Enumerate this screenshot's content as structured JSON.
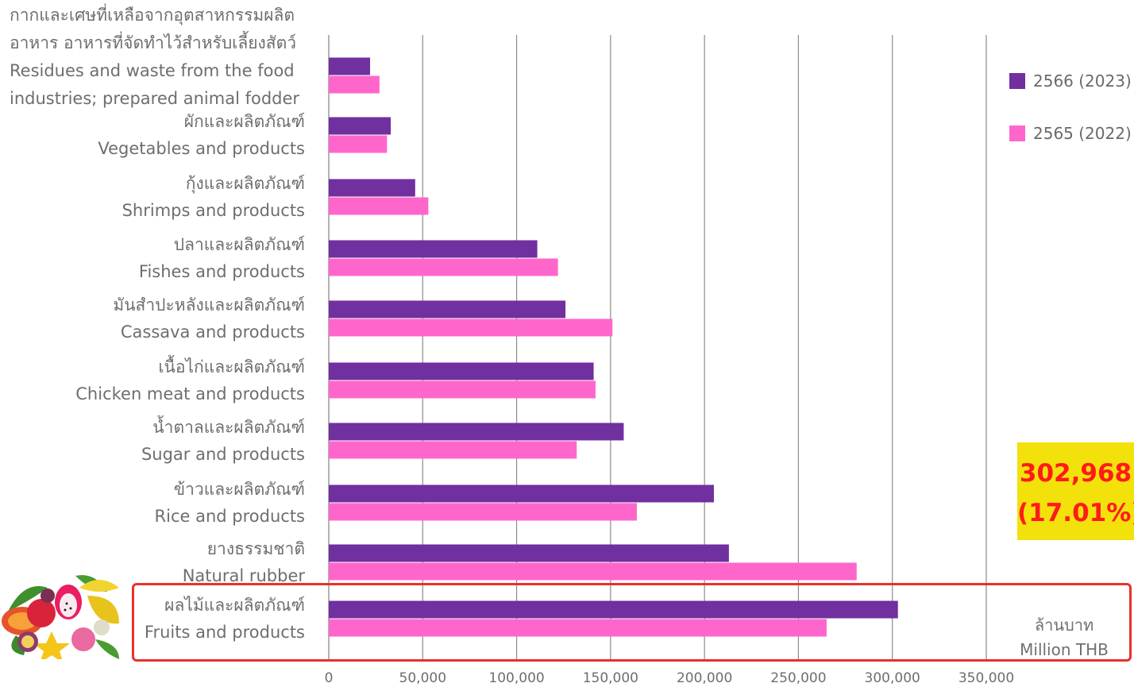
{
  "chart_data": {
    "type": "bar",
    "orientation": "horizontal",
    "title": "",
    "xlabel": "",
    "ylabel": "",
    "unit_label": [
      "ล้านบาท",
      "Million THB"
    ],
    "xlim": [
      0,
      350000
    ],
    "xticks": [
      "0",
      "50,000",
      "100,000",
      "150,000",
      "200,000",
      "250,000",
      "300,000",
      "350,000"
    ],
    "grid": true,
    "legend_placement": "right",
    "categories": [
      [
        "กากและเศษที่เหลือจากอุตสาหกรรมผลิต",
        "อาหาร อาหารที่จัดทำไว้สำหรับเลี้ยงสัตว์",
        "Residues and waste from the food",
        "industries; prepared animal fodder"
      ],
      [
        "ผักและผลิตภัณฑ์",
        "Vegetables and products"
      ],
      [
        "กุ้งและผลิตภัณฑ์",
        "Shrimps and products"
      ],
      [
        "ปลาและผลิตภัณฑ์",
        "Fishes and products"
      ],
      [
        "มันสำปะหลังและผลิตภัณฑ์",
        "Cassava and products"
      ],
      [
        "เนื้อไก่และผลิตภัณฑ์",
        "Chicken meat and products"
      ],
      [
        "น้ำตาลและผลิตภัณฑ์",
        "Sugar and products"
      ],
      [
        "ข้าวและผลิตภัณฑ์",
        "Rice and products"
      ],
      [
        "ยางธรรมชาติ",
        "Natural rubber"
      ],
      [
        "ผลไม้และผลิตภัณฑ์",
        "Fruits and products"
      ]
    ],
    "series": [
      {
        "name": "2566 (2023)",
        "color": "#7030a0",
        "values": [
          22000,
          33000,
          46000,
          111000,
          126000,
          141000,
          157000,
          205000,
          213000,
          302968
        ]
      },
      {
        "name": "2565 (2022)",
        "color": "#ff66cc",
        "values": [
          27000,
          31000,
          53000,
          122000,
          151000,
          142000,
          132000,
          164000,
          281000,
          265000
        ]
      }
    ],
    "annotation": {
      "value_text": "302,968",
      "share_text": "(17.01%)",
      "highlighted_category": "Fruits and products"
    }
  }
}
